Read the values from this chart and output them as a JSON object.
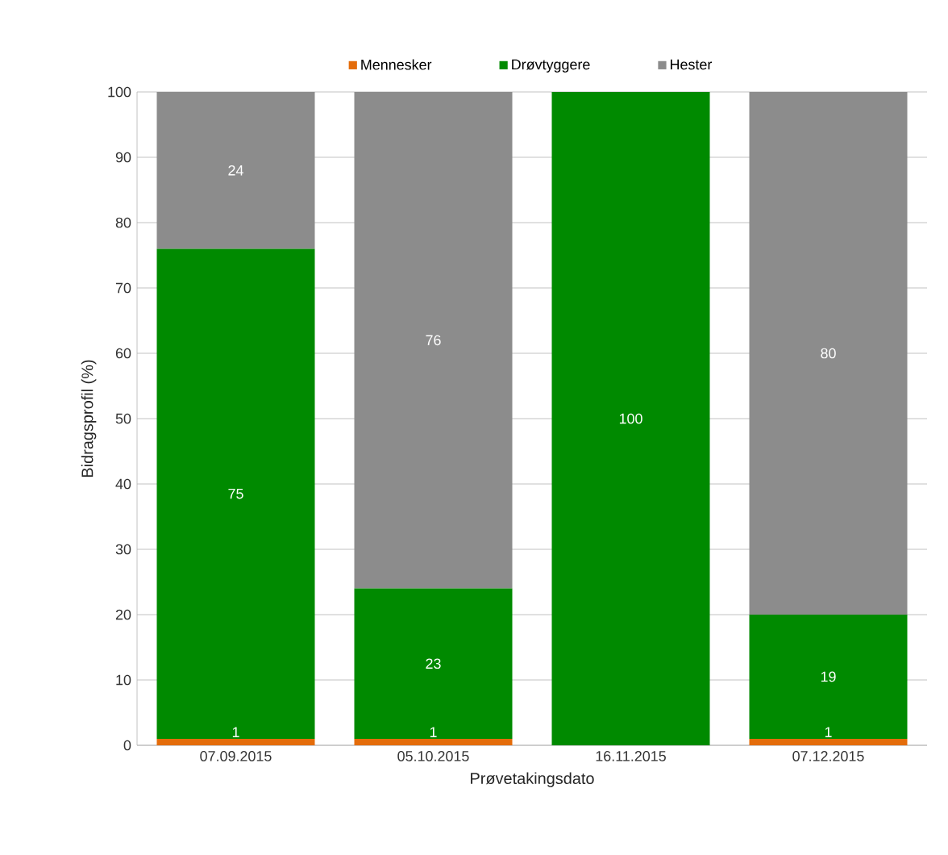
{
  "chart_data": {
    "type": "bar",
    "stacked": true,
    "xlabel": "Prøvetakingsdato",
    "ylabel": "Bidragsprofil (%)",
    "categories": [
      "07.09.2015",
      "05.10.2015",
      "16.11.2015",
      "07.12.2015"
    ],
    "series": [
      {
        "name": "Mennesker",
        "color": "#e46c0a",
        "values": [
          1,
          1,
          0,
          1
        ],
        "value_labels": [
          "1",
          "1",
          null,
          "1"
        ]
      },
      {
        "name": "Drøvtyggere",
        "color": "#008a00",
        "values": [
          75,
          23,
          100,
          19
        ],
        "value_labels": [
          "75",
          "23",
          "100",
          "19"
        ]
      },
      {
        "name": "Hester",
        "color": "#8c8c8c",
        "values": [
          24,
          76,
          0,
          80
        ],
        "value_labels": [
          "24",
          "76",
          null,
          "80"
        ]
      }
    ],
    "ylim": [
      0,
      100
    ],
    "yticks": [
      0,
      10,
      20,
      30,
      40,
      50,
      60,
      70,
      80,
      90,
      100
    ],
    "grid": "y",
    "legend": "top"
  }
}
